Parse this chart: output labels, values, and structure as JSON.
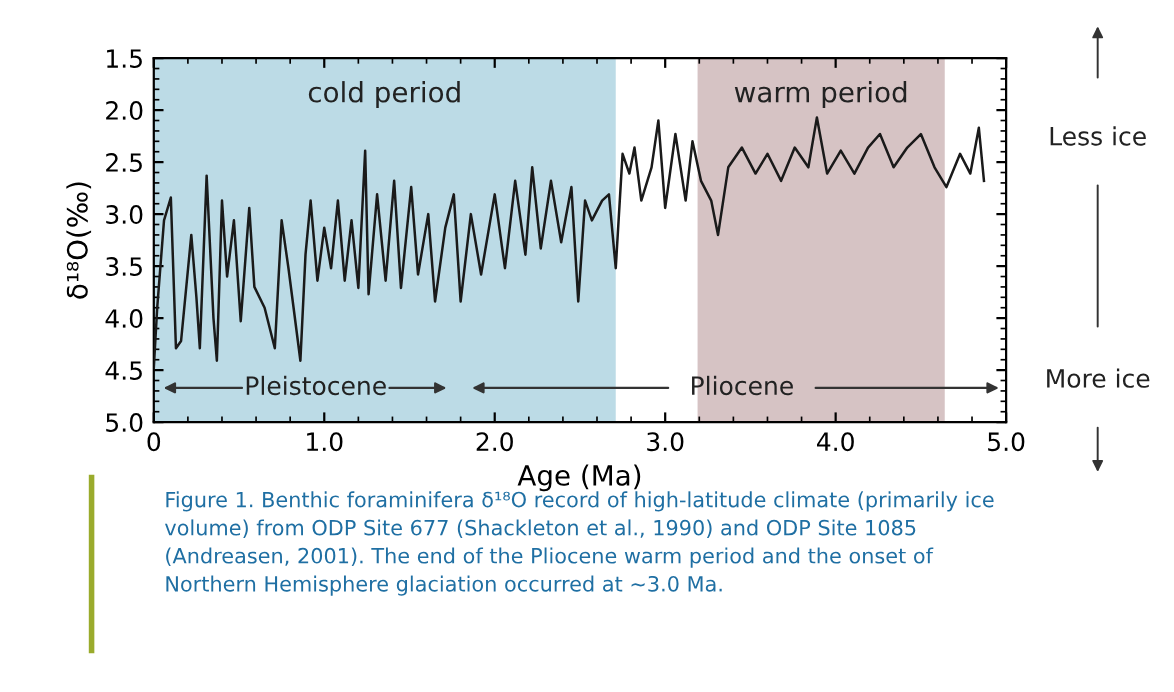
{
  "chart_data": {
    "type": "line",
    "xlabel": "Age (Ma)",
    "ylabel": "δ¹⁸O(‰)",
    "x": [
      0.0,
      0.02,
      0.06,
      0.1,
      0.13,
      0.16,
      0.22,
      0.25,
      0.27,
      0.31,
      0.35,
      0.37,
      0.4,
      0.43,
      0.47,
      0.51,
      0.56,
      0.59,
      0.65,
      0.71,
      0.75,
      0.79,
      0.82,
      0.86,
      0.89,
      0.92,
      0.96,
      1.0,
      1.04,
      1.08,
      1.12,
      1.16,
      1.2,
      1.24,
      1.26,
      1.31,
      1.36,
      1.41,
      1.45,
      1.51,
      1.55,
      1.61,
      1.65,
      1.71,
      1.76,
      1.8,
      1.86,
      1.92,
      2.0,
      2.06,
      2.12,
      2.18,
      2.22,
      2.27,
      2.33,
      2.39,
      2.45,
      2.49,
      2.53,
      2.57,
      2.63,
      2.67,
      2.71,
      2.75,
      2.79,
      2.82,
      2.86,
      2.92,
      2.96,
      3.0,
      3.06,
      3.12,
      3.16,
      3.21,
      3.27,
      3.31,
      3.37,
      3.45,
      3.53,
      3.6,
      3.68,
      3.76,
      3.84,
      3.89,
      3.95,
      4.03,
      4.11,
      4.19,
      4.26,
      4.34,
      4.42,
      4.5,
      4.58,
      4.65,
      4.73,
      4.79,
      4.84,
      4.87
    ],
    "series": [
      {
        "color": "#1a1a1a",
        "values": [
          4.48,
          3.9,
          3.06,
          2.84,
          4.29,
          4.22,
          3.2,
          3.8,
          4.29,
          2.63,
          4.0,
          4.41,
          2.87,
          3.6,
          3.06,
          4.03,
          2.94,
          3.7,
          3.9,
          4.29,
          3.06,
          3.52,
          3.9,
          4.41,
          3.39,
          2.87,
          3.64,
          3.13,
          3.52,
          2.87,
          3.64,
          3.06,
          3.71,
          2.39,
          3.77,
          2.81,
          3.64,
          2.68,
          3.71,
          2.74,
          3.58,
          3.0,
          3.84,
          3.13,
          2.81,
          3.84,
          3.0,
          3.58,
          2.81,
          3.52,
          2.68,
          3.39,
          2.55,
          3.33,
          2.68,
          3.27,
          2.74,
          3.84,
          2.87,
          3.06,
          2.87,
          2.81,
          3.52,
          2.42,
          2.61,
          2.36,
          2.87,
          2.55,
          2.1,
          2.94,
          2.23,
          2.87,
          2.3,
          2.68,
          2.87,
          3.2,
          2.55,
          2.36,
          2.61,
          2.42,
          2.68,
          2.36,
          2.55,
          2.07,
          2.61,
          2.39,
          2.61,
          2.36,
          2.23,
          2.55,
          2.36,
          2.23,
          2.55,
          2.74,
          2.42,
          2.61,
          2.17,
          2.68
        ]
      }
    ],
    "xlim": [
      0,
      5.0
    ],
    "xticks": [
      0,
      {
        "value": 1,
        "label": "1.0"
      },
      {
        "value": 2,
        "label": "2.0"
      },
      {
        "value": 3,
        "label": "3.0"
      },
      {
        "value": 4,
        "label": "4.0"
      },
      {
        "value": 5,
        "label": "5.0"
      }
    ],
    "ylim": [
      5.0,
      1.5
    ],
    "yticks": [
      1.5,
      {
        "value": 2,
        "label": "2.0"
      },
      2.5,
      {
        "value": 3,
        "label": "3.0"
      },
      3.5,
      {
        "value": 4,
        "label": "4.0"
      },
      4.5,
      {
        "value": 5,
        "label": "5.0"
      }
    ],
    "bands": [
      {
        "axis": "x",
        "from": 0,
        "to": 2.71,
        "label": "cold period",
        "color": "#bcdbe6"
      },
      {
        "axis": "x",
        "from": 3.19,
        "to": 4.64,
        "label": "warm period",
        "color": "#d6c3c4"
      }
    ],
    "annotations": [
      "Pleistocene",
      "Pliocene",
      "Less ice",
      "More ice",
      "Figure 1. Benthic foraminifera δ¹⁸O record of high-latitude climate (primarily ice volume) from ODP Site 677 (Shackleton et al., 1990) and ODP Site 1085 (Andreasen, 2001). The end of the Pliocene warm period and the onset of Northern Hemisphere glaciation occurred at ~3.0 Ma."
    ],
    "grid": false,
    "legend": false,
    "marker": "none",
    "line_style": "solid"
  }
}
